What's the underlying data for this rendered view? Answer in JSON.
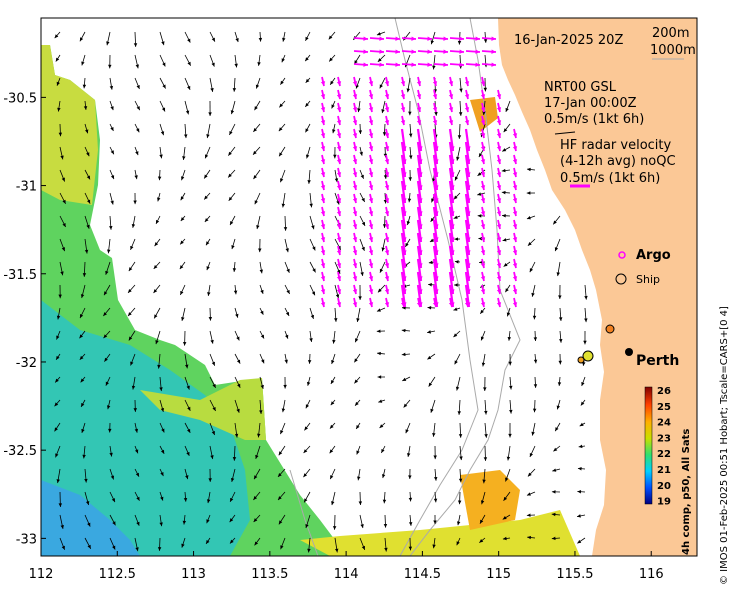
{
  "date_label": "16-Jan-2025 20Z",
  "contours": {
    "c200": "200m",
    "c1000": "1000m"
  },
  "model": {
    "name": "NRT00 GSL",
    "time": "17-Jan 00:00Z",
    "scale": "0.5m/s (1kt 6h)"
  },
  "radar": {
    "title": "HF radar velocity",
    "subtitle": "(4-12h avg) noQC",
    "scale": "0.5m/s (1kt 6h)"
  },
  "legend": {
    "argo": "Argo",
    "ship": "Ship"
  },
  "city": {
    "name": "Perth"
  },
  "colorbar": {
    "label": "4h comp, p50, All Sats",
    "ticks": [
      "26",
      "25",
      "24",
      "23",
      "22",
      "21",
      "20",
      "19"
    ]
  },
  "credit": "© IMOS 01-Feb-2025 00:51 Hobart; Tscale=CARS+[0 4]",
  "axes": {
    "x_ticks": [
      "112",
      "112.5",
      "113",
      "113.5",
      "114",
      "114.5",
      "115",
      "115.5",
      "116"
    ],
    "y_ticks": [
      "-30.5",
      "-31",
      "-31.5",
      "-32",
      "-32.5",
      "-33"
    ],
    "x_range": [
      112,
      116.3
    ],
    "y_range": [
      -33.1,
      -30.05
    ]
  },
  "colors": {
    "land": "#fbc896",
    "radar_arrow": "#ff00ff",
    "model_arrow": "#000000"
  }
}
